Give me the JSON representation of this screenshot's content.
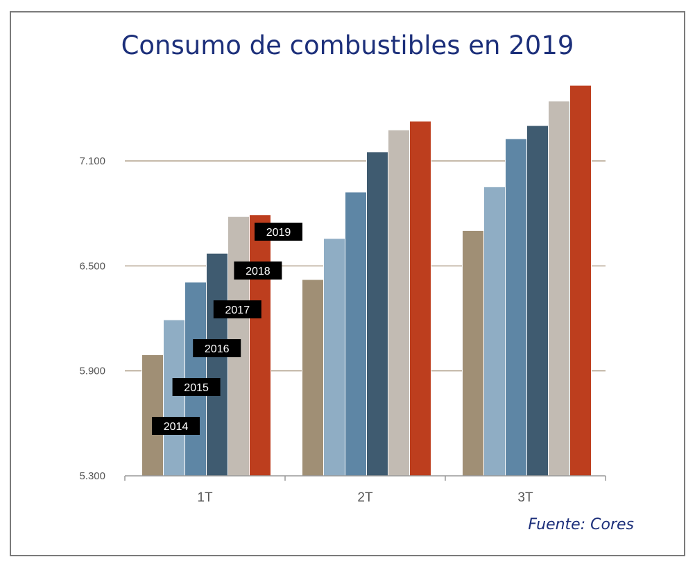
{
  "chart_data": {
    "type": "bar",
    "title": "Consumo de combustibles en 2019",
    "source": "Fuente: Cores",
    "categories": [
      "1T",
      "2T",
      "3T"
    ],
    "ylim": [
      5300,
      7700
    ],
    "yticks": [
      5300,
      5900,
      6500,
      7100
    ],
    "ytick_labels": [
      "5.300",
      "5.900",
      "6.500",
      "7.100"
    ],
    "grid": true,
    "legend_placement": "inline labels on first group",
    "series": [
      {
        "name": "2014",
        "color": "#a08f75",
        "values": [
          5990,
          6420,
          6700
        ]
      },
      {
        "name": "2015",
        "color": "#8fadc4",
        "values": [
          6190,
          6655,
          6950
        ]
      },
      {
        "name": "2016",
        "color": "#5e86a5",
        "values": [
          6405,
          6920,
          7225
        ]
      },
      {
        "name": "2017",
        "color": "#3f5b70",
        "values": [
          6570,
          7150,
          7300
        ]
      },
      {
        "name": "2018",
        "color": "#c2bbb3",
        "values": [
          6780,
          7275,
          7440
        ]
      },
      {
        "name": "2019",
        "color": "#bd3e1e",
        "values": [
          6790,
          7325,
          7530
        ]
      }
    ]
  }
}
